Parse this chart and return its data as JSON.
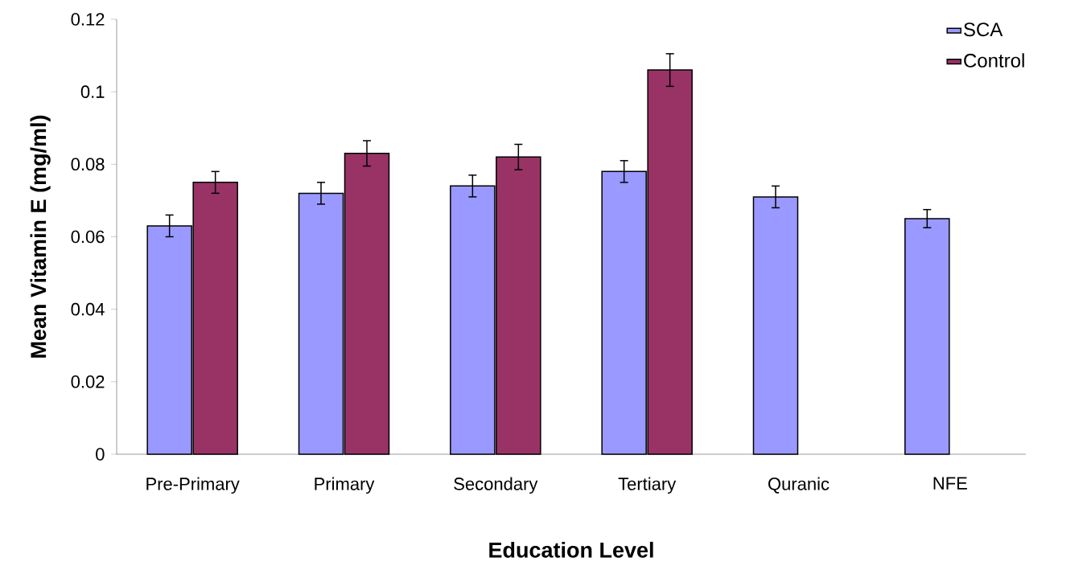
{
  "chart_data": {
    "type": "bar",
    "xlabel": "Education Level",
    "ylabel": "Mean Vitamin E (mg/ml)",
    "categories": [
      "Pre-Primary",
      "Primary",
      "Secondary",
      "Tertiary",
      "Quranic",
      "NFE"
    ],
    "series": [
      {
        "name": "SCA",
        "color": "#9999ff",
        "values": [
          0.063,
          0.072,
          0.074,
          0.078,
          0.071,
          0.065
        ],
        "errors": [
          0.003,
          0.003,
          0.003,
          0.003,
          0.003,
          0.0025
        ]
      },
      {
        "name": "Control",
        "color": "#993366",
        "values": [
          0.075,
          0.083,
          0.082,
          0.106,
          null,
          null
        ],
        "errors": [
          0.003,
          0.0035,
          0.0035,
          0.0045,
          null,
          null
        ]
      }
    ],
    "ylim": [
      0,
      0.12
    ],
    "yticks": [
      0,
      0.02,
      0.04,
      0.06,
      0.08,
      0.1,
      0.12
    ],
    "legend": "top right",
    "grid": false
  }
}
